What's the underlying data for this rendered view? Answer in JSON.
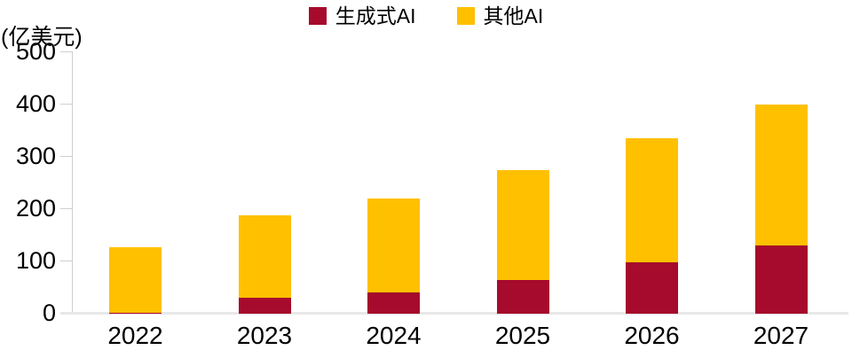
{
  "unit_label": "(亿美元)",
  "legend": {
    "items": [
      {
        "label": "生成式AI",
        "color": "#A60A2C"
      },
      {
        "label": "其他AI",
        "color": "#FFC000"
      }
    ]
  },
  "chart_data": {
    "type": "bar",
    "stacked": true,
    "title": "",
    "unit": "亿美元",
    "categories": [
      "2022",
      "2023",
      "2024",
      "2025",
      "2026",
      "2027"
    ],
    "series": [
      {
        "name": "生成式AI",
        "color": "#A60A2C",
        "values": [
          2,
          30,
          40,
          65,
          98,
          130
        ]
      },
      {
        "name": "其他AI",
        "color": "#FFC000",
        "values": [
          125,
          158,
          180,
          210,
          237,
          270
        ]
      }
    ],
    "totals": [
      127,
      188,
      220,
      275,
      335,
      400
    ],
    "xlabel": "",
    "ylabel": "(亿美元)",
    "ylim": [
      0,
      500
    ],
    "yticks": [
      0,
      100,
      200,
      300,
      400,
      500
    ],
    "legend_position": "top-center",
    "grid": false,
    "axis_color": "#cfcfcf",
    "baseline_color": "#e8e8e8",
    "text_color": "#000000"
  }
}
